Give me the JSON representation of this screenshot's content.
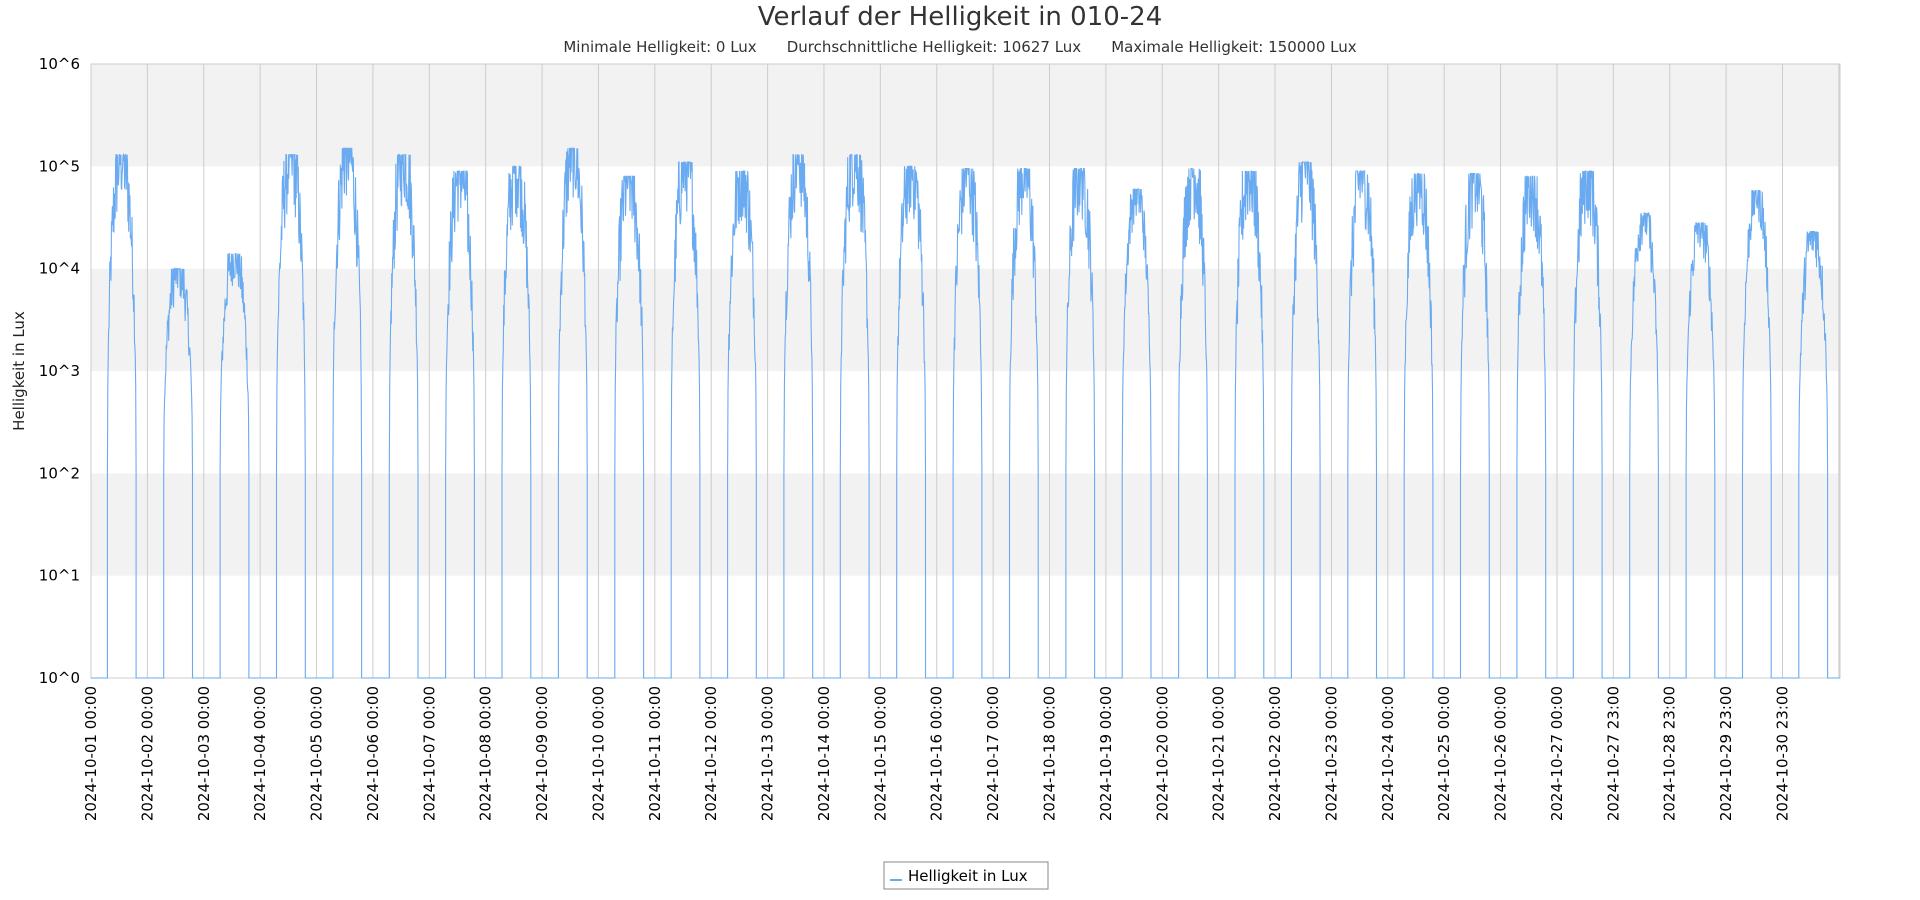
{
  "chart_data": {
    "type": "line",
    "title": "Verlauf der Helligkeit in 010-24",
    "subtitle": {
      "min": "Minimale Helligkeit: 0 Lux",
      "avg": "Durchschnittliche Helligkeit: 10627 Lux",
      "max": "Maximale Helligkeit: 150000 Lux"
    },
    "ylabel": "Helligkeit in Lux",
    "yscale": "log",
    "ylim": [
      1,
      1000000
    ],
    "ytick_labels": [
      "10^0",
      "10^1",
      "10^2",
      "10^3",
      "10^4",
      "10^5",
      "10^6"
    ],
    "xtick_labels": [
      "2024-10-01 00:00",
      "2024-10-02 00:00",
      "2024-10-03 00:00",
      "2024-10-04 00:00",
      "2024-10-05 00:00",
      "2024-10-06 00:00",
      "2024-10-07 00:00",
      "2024-10-08 00:00",
      "2024-10-09 00:00",
      "2024-10-10 00:00",
      "2024-10-11 00:00",
      "2024-10-12 00:00",
      "2024-10-13 00:00",
      "2024-10-14 00:00",
      "2024-10-15 00:00",
      "2024-10-16 00:00",
      "2024-10-17 00:00",
      "2024-10-18 00:00",
      "2024-10-19 00:00",
      "2024-10-20 00:00",
      "2024-10-21 00:00",
      "2024-10-22 00:00",
      "2024-10-23 00:00",
      "2024-10-24 00:00",
      "2024-10-25 00:00",
      "2024-10-26 00:00",
      "2024-10-27 00:00",
      "2024-10-27 23:00",
      "2024-10-28 23:00",
      "2024-10-29 23:00",
      "2024-10-30 23:00"
    ],
    "grid": true,
    "legend": {
      "position": "bottom-center",
      "entries": [
        "Helligkeit in Lux"
      ]
    },
    "series": [
      {
        "name": "Helligkeit in Lux",
        "color": "#6aaaf0",
        "daily_peak_lux": [
          130000,
          10000,
          14000,
          130000,
          150000,
          130000,
          90000,
          100000,
          150000,
          80000,
          110000,
          90000,
          130000,
          130000,
          100000,
          95000,
          95000,
          95000,
          60000,
          95000,
          90000,
          110000,
          90000,
          85000,
          85000,
          80000,
          90000,
          35000,
          28000,
          58000,
          23000
        ],
        "night_value_lux": 1
      }
    ],
    "colors": {
      "band": "#f2f2f2",
      "grid": "#cccccc",
      "line": "#6aaaf0"
    }
  }
}
